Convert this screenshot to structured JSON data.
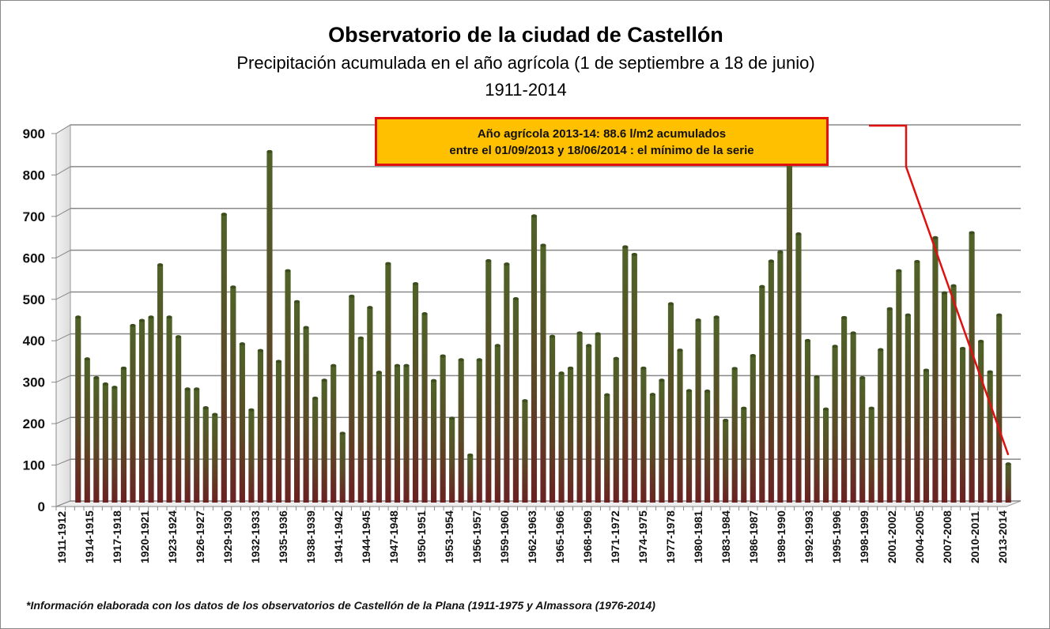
{
  "chart_data": {
    "type": "bar",
    "title": "Observatorio de la ciudad de Castellón",
    "subtitle": "Precipitación acumulada en el año agrícola (1 de septiembre a 18 de junio)",
    "period": "1911-2014",
    "xlabel": "",
    "ylabel": "",
    "ylim": [
      0,
      900
    ],
    "yticks": [
      0,
      100,
      200,
      300,
      400,
      500,
      600,
      700,
      800,
      900
    ],
    "grid": true,
    "legend": "none",
    "start_year": 1911,
    "label_every": 3,
    "values": [
      440,
      340,
      295,
      280,
      272,
      318,
      420,
      432,
      440,
      565,
      440,
      393,
      268,
      268,
      223,
      207,
      686,
      512,
      376,
      218,
      360,
      836,
      334,
      551,
      477,
      415,
      246,
      289,
      324,
      162,
      490,
      390,
      463,
      308,
      568,
      324,
      324,
      520,
      448,
      288,
      347,
      198,
      338,
      110,
      338,
      575,
      372,
      567,
      484,
      240,
      682,
      612,
      394,
      306,
      318,
      402,
      372,
      400,
      254,
      341,
      608,
      590,
      318,
      255,
      289,
      472,
      361,
      264,
      433,
      263,
      440,
      193,
      317,
      222,
      348,
      513,
      574,
      596,
      880,
      639,
      384,
      297,
      220,
      370,
      439,
      402,
      295,
      222,
      362,
      460,
      551,
      445,
      573,
      313,
      630,
      498,
      515,
      365,
      642,
      382,
      309,
      445,
      88.6
    ],
    "colors": {
      "bar_top": "#4f6228",
      "bar_bottom": "#632523",
      "callout_bg": "#ffc000",
      "callout_border": "#e01010",
      "pointer": "#e01010"
    },
    "annotation": {
      "line1": "Año agrícola 2013-14:  88.6 l/m2 acumulados",
      "line2": "entre el  01/09/2013 y 18/06/2014 : el mínimo de la serie"
    },
    "footnote": "*Información elaborada con los datos de los observatorios de Castellón de la Plana (1911-1975 y Almassora (1976-2014)"
  }
}
